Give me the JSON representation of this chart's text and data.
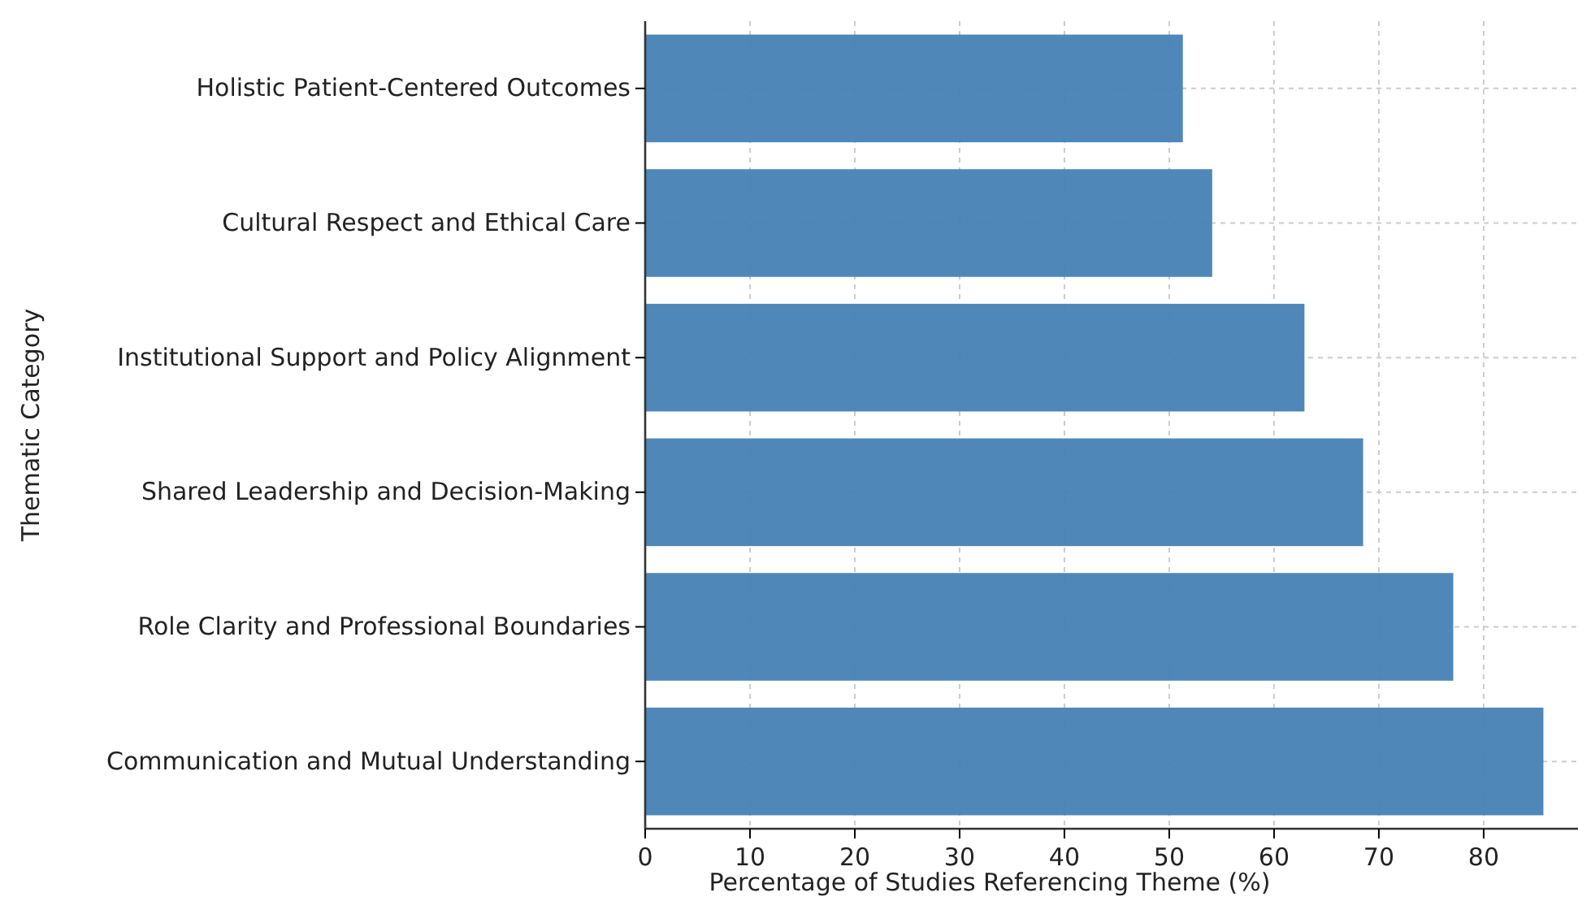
{
  "chart_data": {
    "type": "bar",
    "orientation": "horizontal",
    "xlabel": "Percentage of Studies Referencing Theme (%)",
    "ylabel": "Thematic Category",
    "categories": [
      "Holistic Patient-Centered Outcomes",
      "Cultural Respect and Ethical Care",
      "Institutional Support and Policy Alignment",
      "Shared Leadership and Decision-Making",
      "Role Clarity and Professional Boundaries",
      "Communication and Mutual Understanding"
    ],
    "values": [
      51.3,
      54.1,
      62.9,
      68.5,
      77.1,
      85.7
    ],
    "color": "#4682b4",
    "xlim": [
      0,
      89
    ],
    "xticks": [
      0,
      10,
      20,
      30,
      40,
      50,
      60,
      70,
      80
    ],
    "grid": true
  }
}
